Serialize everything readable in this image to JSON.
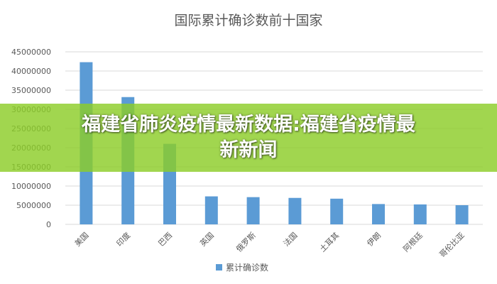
{
  "chart_data": {
    "type": "bar",
    "title": "国际累计确诊数前十国家",
    "xlabel": "",
    "ylabel": "",
    "ylim": [
      0,
      45000000
    ],
    "yticks": [
      0,
      5000000,
      10000000,
      15000000,
      20000000,
      25000000,
      30000000,
      35000000,
      40000000,
      45000000
    ],
    "ytick_labels": [
      "0",
      "5000000",
      "10000000",
      "15000000",
      "20000000",
      "25000000",
      "30000000",
      "35000000",
      "40000000",
      "45000000"
    ],
    "categories": [
      "美国",
      "印度",
      "巴西",
      "英国",
      "俄罗斯",
      "法国",
      "土耳其",
      "伊朗",
      "阿根廷",
      "哥伦比亚"
    ],
    "series": [
      {
        "name": "累计确诊数",
        "values": [
          42300000,
          33200000,
          21000000,
          7300000,
          7100000,
          6900000,
          6700000,
          5300000,
          5200000,
          5000000
        ]
      }
    ],
    "grid": true,
    "legend": "bottom",
    "colors": {
      "bar": "#5b9bd5",
      "grid": "#d9d9d9",
      "text": "#595959"
    }
  },
  "overlay": {
    "line1": "福建省肺炎疫情最新数据:福建省疫情最",
    "line2": "新新闻",
    "color": "#8ccd28"
  }
}
